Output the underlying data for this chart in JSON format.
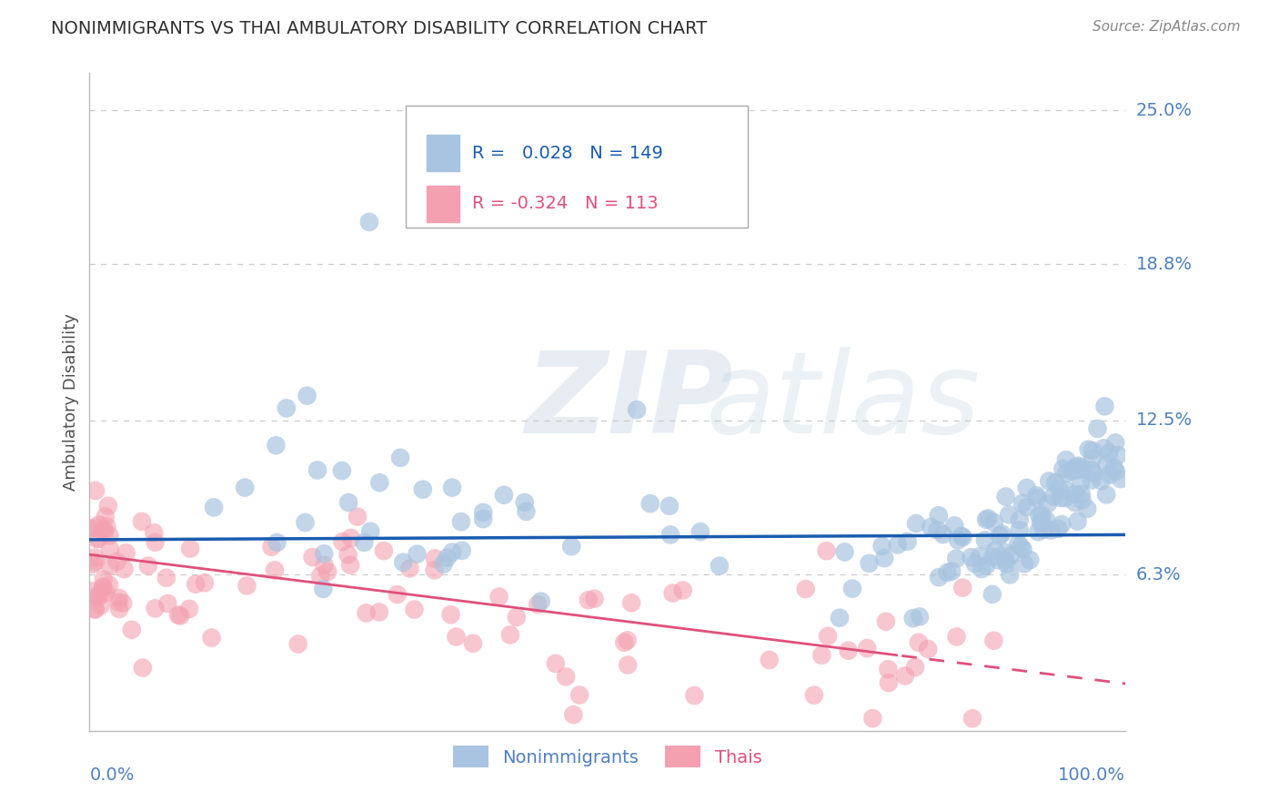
{
  "title": "NONIMMIGRANTS VS THAI AMBULATORY DISABILITY CORRELATION CHART",
  "source_text": "Source: ZipAtlas.com",
  "ylabel": "Ambulatory Disability",
  "xmin": 0.0,
  "xmax": 1.0,
  "ymin": 0.0,
  "ymax": 0.265,
  "yticks": [
    0.063,
    0.125,
    0.188,
    0.25
  ],
  "ytick_labels": [
    "6.3%",
    "12.5%",
    "18.8%",
    "25.0%"
  ],
  "blue_R": 0.028,
  "blue_N": 149,
  "pink_R": -0.324,
  "pink_N": 113,
  "blue_color": "#a8c4e0",
  "pink_color": "#f4a0b0",
  "blue_line_color": "#1a5cb0",
  "pink_line_color": "#e0507a",
  "legend_label_blue": "Nonimmigrants",
  "legend_label_pink": "Thais",
  "watermark_zip": "ZIP",
  "watermark_atlas": "atlas",
  "background_color": "#ffffff",
  "grid_color": "#cccccc",
  "title_color": "#303030",
  "axis_label_color": "#505050",
  "tick_label_color": "#5080c0",
  "blue_trend_intercept": 0.077,
  "blue_trend_slope": 0.002,
  "pink_trend_intercept": 0.071,
  "pink_trend_slope": -0.052,
  "blue_scatter_seed": 7,
  "pink_scatter_seed": 13
}
